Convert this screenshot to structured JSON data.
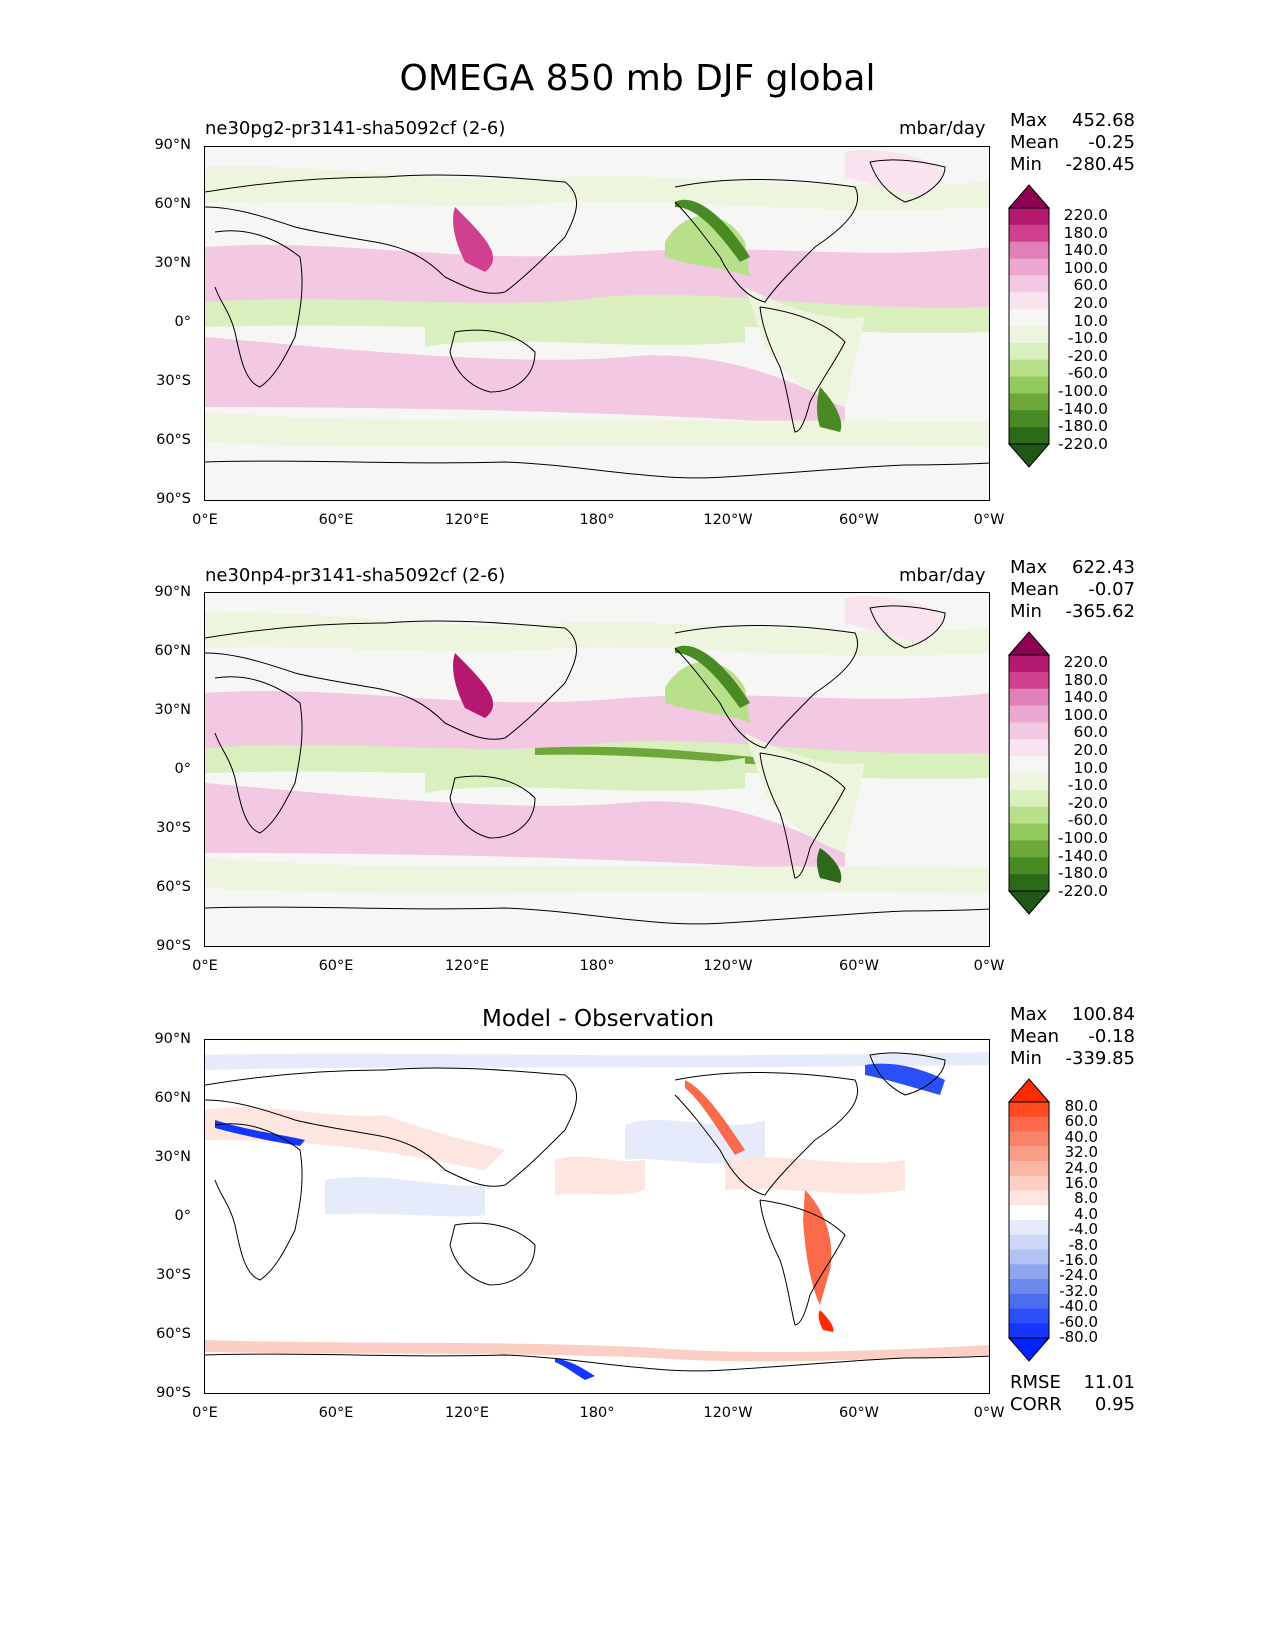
{
  "figure": {
    "title": "OMEGA 850 mb DJF global"
  },
  "axes": {
    "y_ticks": [
      "90°N",
      "60°N",
      "30°N",
      "0°",
      "30°S",
      "60°S",
      "90°S"
    ],
    "x_ticks": [
      "0°E",
      "60°E",
      "120°E",
      "180°",
      "120°W",
      "60°W",
      "0°W"
    ]
  },
  "panels": [
    {
      "title": "ne30pg2-pr3141-sha5092cf (2-6)",
      "units": "mbar/day",
      "stats": {
        "max_label": "Max",
        "max": "452.68",
        "mean_label": "Mean",
        "mean": "-0.25",
        "min_label": "Min",
        "min": "-280.45"
      }
    },
    {
      "title": "ne30np4-pr3141-sha5092cf (2-6)",
      "units": "mbar/day",
      "stats": {
        "max_label": "Max",
        "max": "622.43",
        "mean_label": "Mean",
        "mean": "-0.07",
        "min_label": "Min",
        "min": "-365.62"
      }
    },
    {
      "title": "Model - Observation",
      "stats": {
        "max_label": "Max",
        "max": "100.84",
        "mean_label": "Mean",
        "mean": "-0.18",
        "min_label": "Min",
        "min": "-339.85"
      },
      "metrics": {
        "rmse_label": "RMSE",
        "rmse": "11.01",
        "corr_label": "CORR",
        "corr": "0.95"
      }
    }
  ],
  "colorbars": {
    "omega": {
      "labels": [
        "220.0",
        "180.0",
        "140.0",
        "100.0",
        "60.0",
        "20.0",
        "10.0",
        "-10.0",
        "-20.0",
        "-60.0",
        "-100.0",
        "-140.0",
        "-180.0",
        "-220.0"
      ],
      "colors": [
        "#8e0152",
        "#b5196f",
        "#d0408f",
        "#e17fb7",
        "#eca8d0",
        "#f3c8e2",
        "#f8e3ef",
        "#f6f6f4",
        "#edf5df",
        "#d9efbe",
        "#b8e08a",
        "#93c95e",
        "#6ea83a",
        "#4a8a25",
        "#2c6a1a",
        "#205616"
      ]
    },
    "diff": {
      "labels": [
        "80.0",
        "60.0",
        "40.0",
        "32.0",
        "24.0",
        "16.0",
        "8.0",
        "4.0",
        "-4.0",
        "-8.0",
        "-16.0",
        "-24.0",
        "-32.0",
        "-40.0",
        "-60.0",
        "-80.0"
      ],
      "colors": [
        "#ff2a00",
        "#ff4b22",
        "#fb6a4a",
        "#f8836b",
        "#f99c88",
        "#fbb5a5",
        "#fccfc4",
        "#fde6df",
        "#ffffff",
        "#e6ebfb",
        "#cdd7f7",
        "#b0c1f3",
        "#8fa6ef",
        "#6e89ec",
        "#4c6cf0",
        "#2b4ff7",
        "#1436ff",
        "#0022ff"
      ]
    }
  },
  "chart_data": [
    {
      "type": "heatmap",
      "title": "ne30pg2-pr3141-sha5092cf (2-6)",
      "suptitle": "OMEGA 850 mb DJF global",
      "units": "mbar/day",
      "xlabel": "",
      "ylabel": "",
      "xlim": [
        0,
        360
      ],
      "ylim": [
        -90,
        90
      ],
      "levels": [
        -220,
        -180,
        -140,
        -100,
        -60,
        -20,
        -10,
        10,
        20,
        60,
        100,
        140,
        180,
        220
      ],
      "max": 452.68,
      "mean": -0.25,
      "min": -280.45
    },
    {
      "type": "heatmap",
      "title": "ne30np4-pr3141-sha5092cf (2-6)",
      "units": "mbar/day",
      "xlim": [
        0,
        360
      ],
      "ylim": [
        -90,
        90
      ],
      "levels": [
        -220,
        -180,
        -140,
        -100,
        -60,
        -20,
        -10,
        10,
        20,
        60,
        100,
        140,
        180,
        220
      ],
      "max": 622.43,
      "mean": -0.07,
      "min": -365.62
    },
    {
      "type": "heatmap",
      "title": "Model - Observation",
      "xlim": [
        0,
        360
      ],
      "ylim": [
        -90,
        90
      ],
      "levels": [
        -80,
        -60,
        -40,
        -32,
        -24,
        -16,
        -8,
        -4,
        4,
        8,
        16,
        24,
        32,
        40,
        60,
        80
      ],
      "max": 100.84,
      "mean": -0.18,
      "min": -339.85,
      "rmse": 11.01,
      "corr": 0.95
    }
  ]
}
